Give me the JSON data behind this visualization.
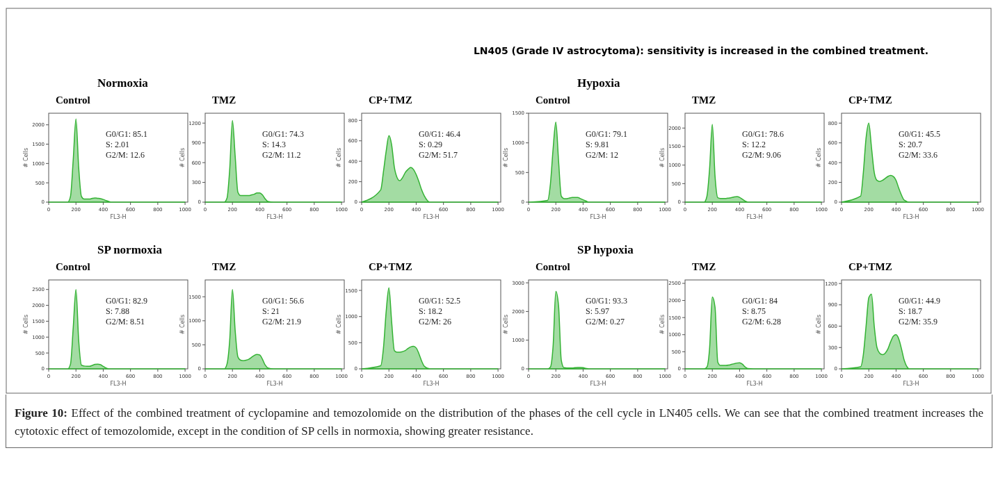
{
  "chart_data": [
    {
      "type": "other",
      "title": "LN405 (Grade IV astrocytoma): sensitivity is increased in the combined treatment.",
      "annotations": [
        "Figure 10: Effect of the combined treatment of cyclopamine and temozolomide on the distribution of the phases of the cell cycle in LN405 cells. We can see that the combined treatment increases the cytotoxic effect of temozolomide, except in the condition of SP cells in normoxia, showing greater resistance."
      ]
    },
    {
      "type": "area",
      "title": "Control",
      "subtitle": "Normoxia",
      "xlabel": "FL3-H",
      "ylabel": "# Cells",
      "x": [
        0,
        140,
        160,
        180,
        200,
        220,
        240,
        260,
        280,
        300,
        320,
        340,
        360,
        380,
        400,
        420,
        440,
        460,
        500,
        1000
      ],
      "xlim": [
        0,
        1020
      ],
      "xticks": [
        0,
        200,
        400,
        600,
        800,
        1000
      ],
      "ylim": [
        0,
        2300
      ],
      "yticks": [
        0,
        500,
        1000,
        1500,
        2000
      ],
      "annotations": [
        "G0/G1: 85.1",
        "S: 2.01",
        "G2/M: 12.6"
      ],
      "series": [
        {
          "color": "#33b233",
          "values": [
            0,
            0,
            150,
            1100,
            2150,
            900,
            150,
            80,
            80,
            80,
            100,
            110,
            100,
            90,
            70,
            40,
            20,
            0,
            0,
            0
          ]
        }
      ]
    },
    {
      "type": "area",
      "title": "TMZ",
      "xlabel": "FL3-H",
      "ylabel": "# Cells",
      "x": [
        0,
        140,
        160,
        180,
        200,
        220,
        240,
        260,
        280,
        300,
        320,
        340,
        360,
        380,
        400,
        420,
        440,
        460,
        500,
        1000
      ],
      "xlim": [
        0,
        1020
      ],
      "xticks": [
        0,
        200,
        400,
        600,
        800,
        1000
      ],
      "ylim": [
        0,
        1350
      ],
      "yticks": [
        0,
        300,
        600,
        900,
        1200
      ],
      "annotations": [
        "G0/G1: 74.3",
        "S: 14.3",
        "G2/M: 11.2"
      ],
      "series": [
        {
          "color": "#33b233",
          "values": [
            0,
            0,
            60,
            500,
            1240,
            700,
            150,
            100,
            100,
            100,
            100,
            110,
            120,
            140,
            140,
            110,
            50,
            10,
            0,
            0
          ]
        }
      ]
    },
    {
      "type": "area",
      "title": "CP+TMZ",
      "xlabel": "FL3-H",
      "ylabel": "# Cells",
      "x": [
        0,
        140,
        160,
        180,
        200,
        220,
        240,
        260,
        280,
        300,
        320,
        340,
        360,
        380,
        400,
        420,
        440,
        460,
        500,
        1000
      ],
      "xlim": [
        0,
        1020
      ],
      "xticks": [
        0,
        200,
        400,
        600,
        800,
        1000
      ],
      "ylim": [
        0,
        870
      ],
      "yticks": [
        0,
        200,
        400,
        600,
        800
      ],
      "annotations": [
        "G0/G1: 46.4",
        "S: 0.29",
        "G2/M: 51.7"
      ],
      "series": [
        {
          "color": "#33b233",
          "values": [
            0,
            120,
            300,
            500,
            650,
            560,
            340,
            240,
            210,
            240,
            290,
            320,
            340,
            320,
            270,
            200,
            120,
            60,
            0,
            0
          ]
        }
      ]
    },
    {
      "type": "area",
      "title": "Control",
      "subtitle": "Hypoxia",
      "xlabel": "FL3-H",
      "ylabel": "# Cells",
      "x": [
        0,
        140,
        160,
        180,
        200,
        220,
        240,
        260,
        280,
        300,
        320,
        340,
        360,
        380,
        400,
        420,
        440,
        460,
        500,
        1000
      ],
      "xlim": [
        0,
        1020
      ],
      "xticks": [
        0,
        200,
        400,
        600,
        800,
        1000
      ],
      "ylim": [
        0,
        1500
      ],
      "yticks": [
        0,
        500,
        1000,
        1500
      ],
      "annotations": [
        "G0/G1: 79.1",
        "S: 9.81",
        "G2/M: 12"
      ],
      "series": [
        {
          "color": "#33b233",
          "values": [
            0,
            30,
            300,
            900,
            1350,
            700,
            100,
            60,
            60,
            70,
            80,
            80,
            80,
            60,
            40,
            20,
            0,
            0,
            0,
            0
          ]
        }
      ]
    },
    {
      "type": "area",
      "title": "TMZ",
      "xlabel": "FL3-H",
      "ylabel": "# Cells",
      "x": [
        0,
        140,
        160,
        180,
        200,
        220,
        240,
        260,
        280,
        300,
        320,
        340,
        360,
        380,
        400,
        420,
        440,
        460,
        500,
        1000
      ],
      "xlim": [
        0,
        1020
      ],
      "xticks": [
        0,
        200,
        400,
        600,
        800,
        1000
      ],
      "ylim": [
        0,
        2400
      ],
      "yticks": [
        0,
        500,
        1000,
        1500,
        2000
      ],
      "annotations": [
        "G0/G1: 78.6",
        "S: 12.2",
        "G2/M: 9.06"
      ],
      "series": [
        {
          "color": "#33b233",
          "values": [
            0,
            0,
            150,
            900,
            2100,
            700,
            120,
            100,
            100,
            100,
            110,
            120,
            140,
            150,
            130,
            80,
            30,
            0,
            0,
            0
          ]
        }
      ]
    },
    {
      "type": "area",
      "title": "CP+TMZ",
      "xlabel": "FL3-H",
      "ylabel": "# Cells",
      "x": [
        0,
        140,
        160,
        180,
        200,
        220,
        240,
        260,
        280,
        300,
        320,
        340,
        360,
        380,
        400,
        420,
        440,
        460,
        500,
        1000
      ],
      "xlim": [
        0,
        1020
      ],
      "xticks": [
        0,
        200,
        400,
        600,
        800,
        1000
      ],
      "ylim": [
        0,
        900
      ],
      "yticks": [
        0,
        200,
        400,
        600,
        800
      ],
      "annotations": [
        "G0/G1: 45.5",
        "S: 20.7",
        "G2/M: 33.6"
      ],
      "series": [
        {
          "color": "#33b233",
          "values": [
            0,
            60,
            300,
            650,
            800,
            550,
            300,
            220,
            210,
            220,
            240,
            260,
            270,
            260,
            220,
            140,
            70,
            20,
            0,
            0
          ]
        }
      ]
    },
    {
      "type": "area",
      "title": "Control",
      "subtitle": "SP normoxia",
      "xlabel": "FL3-H",
      "ylabel": "# Cells",
      "x": [
        0,
        140,
        160,
        180,
        200,
        220,
        240,
        260,
        280,
        300,
        320,
        340,
        360,
        380,
        400,
        420,
        440,
        460,
        500,
        1000
      ],
      "xlim": [
        0,
        1020
      ],
      "xticks": [
        0,
        200,
        400,
        600,
        800,
        1000
      ],
      "ylim": [
        0,
        2800
      ],
      "yticks": [
        0,
        500,
        1000,
        1500,
        2000,
        2500
      ],
      "annotations": [
        "G0/G1: 82.9",
        "S: 7.88",
        "G2/M: 8.51"
      ],
      "series": [
        {
          "color": "#33b233",
          "values": [
            0,
            0,
            150,
            1300,
            2500,
            900,
            120,
            90,
            80,
            80,
            110,
            140,
            150,
            130,
            80,
            30,
            0,
            0,
            0,
            0
          ]
        }
      ]
    },
    {
      "type": "area",
      "title": "TMZ",
      "xlabel": "FL3-H",
      "ylabel": "# Cells",
      "x": [
        0,
        140,
        160,
        180,
        200,
        220,
        240,
        260,
        280,
        300,
        320,
        340,
        360,
        380,
        400,
        420,
        440,
        460,
        500,
        1000
      ],
      "xlim": [
        0,
        1020
      ],
      "xticks": [
        0,
        200,
        400,
        600,
        800,
        1000
      ],
      "ylim": [
        0,
        1850
      ],
      "yticks": [
        0,
        500,
        1000,
        1500
      ],
      "annotations": [
        "G0/G1: 56.6",
        "S: 21",
        "G2/M: 21.9"
      ],
      "series": [
        {
          "color": "#33b233",
          "values": [
            0,
            0,
            100,
            600,
            1650,
            800,
            250,
            180,
            170,
            180,
            200,
            240,
            280,
            300,
            290,
            200,
            80,
            20,
            0,
            0
          ]
        }
      ]
    },
    {
      "type": "area",
      "title": "CP+TMZ",
      "xlabel": "FL3-H",
      "ylabel": "# Cells",
      "x": [
        0,
        140,
        160,
        180,
        200,
        220,
        240,
        260,
        280,
        300,
        320,
        340,
        360,
        380,
        400,
        420,
        440,
        460,
        500,
        1000
      ],
      "xlim": [
        0,
        1020
      ],
      "xticks": [
        0,
        200,
        400,
        600,
        800,
        1000
      ],
      "ylim": [
        0,
        1700
      ],
      "yticks": [
        0,
        500,
        1000,
        1500
      ],
      "annotations": [
        "G0/G1: 52.5",
        "S: 18.2",
        "G2/M: 26"
      ],
      "series": [
        {
          "color": "#33b233",
          "values": [
            0,
            60,
            400,
            1100,
            1550,
            900,
            350,
            320,
            320,
            330,
            350,
            390,
            420,
            430,
            400,
            290,
            150,
            50,
            0,
            0
          ]
        }
      ]
    },
    {
      "type": "area",
      "title": "Control",
      "subtitle": "SP hypoxia",
      "xlabel": "FL3-H",
      "ylabel": "# Cells",
      "x": [
        0,
        140,
        160,
        180,
        200,
        220,
        240,
        260,
        280,
        300,
        320,
        340,
        360,
        380,
        400,
        420,
        440,
        460,
        500,
        1000
      ],
      "xlim": [
        0,
        1020
      ],
      "xticks": [
        0,
        200,
        400,
        600,
        800,
        1000
      ],
      "ylim": [
        0,
        3100
      ],
      "yticks": [
        0,
        1000,
        2000,
        3000
      ],
      "annotations": [
        "G0/G1: 93.3",
        "S: 5.97",
        "G2/M: 0.27"
      ],
      "series": [
        {
          "color": "#33b233",
          "values": [
            0,
            0,
            60,
            800,
            2700,
            2200,
            300,
            40,
            30,
            30,
            30,
            40,
            50,
            50,
            40,
            20,
            0,
            0,
            0,
            0
          ]
        }
      ]
    },
    {
      "type": "area",
      "title": "TMZ",
      "xlabel": "FL3-H",
      "ylabel": "# Cells",
      "x": [
        0,
        140,
        160,
        180,
        200,
        220,
        240,
        260,
        280,
        300,
        320,
        340,
        360,
        380,
        400,
        420,
        440,
        460,
        500,
        1000
      ],
      "xlim": [
        0,
        1020
      ],
      "xticks": [
        0,
        200,
        400,
        600,
        800,
        1000
      ],
      "ylim": [
        0,
        2600
      ],
      "yticks": [
        0,
        500,
        1000,
        1500,
        2000,
        2500
      ],
      "annotations": [
        "G0/G1: 84",
        "S: 8.75",
        "G2/M: 6.28"
      ],
      "series": [
        {
          "color": "#33b233",
          "values": [
            0,
            0,
            50,
            600,
            2100,
            1800,
            200,
            100,
            100,
            100,
            110,
            130,
            150,
            170,
            180,
            140,
            60,
            10,
            0,
            0
          ]
        }
      ]
    },
    {
      "type": "area",
      "title": "CP+TMZ",
      "xlabel": "FL3-H",
      "ylabel": "# Cells",
      "x": [
        0,
        140,
        160,
        180,
        200,
        220,
        240,
        260,
        280,
        300,
        320,
        340,
        360,
        380,
        400,
        420,
        440,
        460,
        500,
        1000
      ],
      "xlim": [
        0,
        1020
      ],
      "xticks": [
        0,
        200,
        400,
        600,
        800,
        1000
      ],
      "ylim": [
        0,
        1250
      ],
      "yticks": [
        0,
        300,
        600,
        900,
        1200
      ],
      "annotations": [
        "G0/G1: 44.9",
        "S: 18.7",
        "G2/M: 35.9"
      ],
      "series": [
        {
          "color": "#33b233",
          "values": [
            0,
            30,
            200,
            600,
            1000,
            1050,
            600,
            300,
            220,
            200,
            220,
            280,
            380,
            460,
            480,
            420,
            280,
            120,
            0,
            0
          ]
        }
      ]
    }
  ]
}
